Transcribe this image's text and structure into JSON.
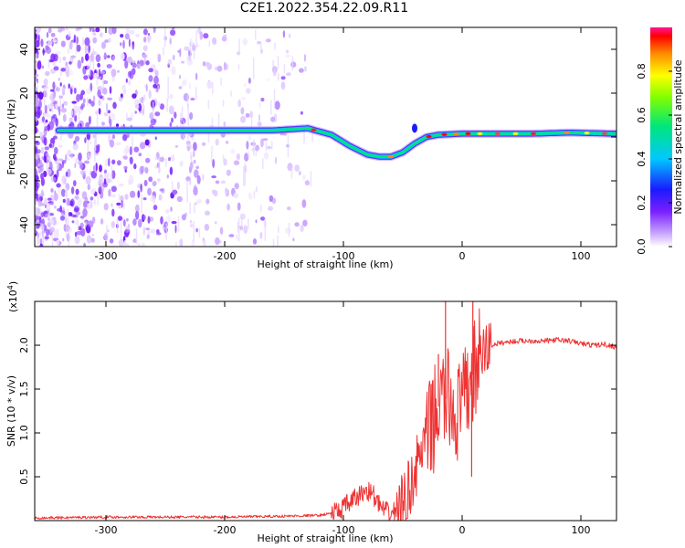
{
  "title": "C2E1.2022.354.22.09.R11",
  "chart_data": [
    {
      "type": "heatmap",
      "xlabel": "Height of straight line (km)",
      "ylabel": "Frequency (Hz)",
      "xlim": [
        -360,
        130
      ],
      "ylim": [
        -50,
        50
      ],
      "xticks": [
        -300,
        -200,
        -100,
        0,
        100
      ],
      "yticks": [
        -40,
        -20,
        0,
        20,
        40
      ],
      "colorbar": {
        "label": "Normalized spectral amplitude",
        "range": [
          0.0,
          1.0
        ],
        "ticks": [
          0.0,
          0.2,
          0.4,
          0.6,
          0.8
        ]
      },
      "ridge": {
        "description_points_x": [
          -340,
          -300,
          -250,
          -200,
          -160,
          -130,
          -110,
          -95,
          -80,
          -70,
          -60,
          -50,
          -40,
          -30,
          -20,
          0,
          20,
          60,
          90,
          130
        ],
        "description_points_y": [
          3,
          3,
          3,
          3,
          3,
          4,
          1,
          -4,
          -8,
          -9,
          -9,
          -7,
          -3,
          0,
          1,
          1.5,
          1.5,
          1.5,
          2,
          1.5
        ]
      }
    },
    {
      "type": "line",
      "xlabel": "Height of straight line (km)",
      "ylabel": "SNR (10 * v/v)",
      "scale_label": "(x10",
      "scale_exp": "4",
      "scale_close": ")",
      "xlim": [
        -360,
        130
      ],
      "ylim": [
        0,
        2.5
      ],
      "xticks": [
        -300,
        -200,
        -100,
        0,
        100
      ],
      "yticks": [
        0.5,
        1.0,
        1.5,
        2.0
      ],
      "series": [
        {
          "color": "#ee3333",
          "x": [
            -360,
            -300,
            -250,
            -200,
            -150,
            -120,
            -105,
            -95,
            -85,
            -80,
            -75,
            -70,
            -65,
            -60,
            -55,
            -50,
            -45,
            -40,
            -35,
            -30,
            -25,
            -20,
            -15,
            -10,
            -5,
            0,
            5,
            10,
            15,
            20,
            25,
            30,
            40,
            50,
            60,
            70,
            80,
            90,
            100,
            110,
            120,
            130
          ],
          "y": [
            0.03,
            0.04,
            0.04,
            0.04,
            0.05,
            0.06,
            0.1,
            0.2,
            0.3,
            0.35,
            0.3,
            0.18,
            0.1,
            0.08,
            0.12,
            0.2,
            0.35,
            0.55,
            0.75,
            0.95,
            1.1,
            1.3,
            1.4,
            1.35,
            1.2,
            1.3,
            1.5,
            1.7,
            1.85,
            1.95,
            2.0,
            2.02,
            2.04,
            2.05,
            2.05,
            2.05,
            2.06,
            2.05,
            2.02,
            2.0,
            2.01,
            1.98
          ]
        }
      ],
      "spikes": [
        {
          "x": -14,
          "y": 2.5
        },
        {
          "x": 9,
          "y": 2.5
        },
        {
          "x": -20,
          "y": 1.9
        },
        {
          "x": 8,
          "y": 0.5
        }
      ]
    }
  ]
}
